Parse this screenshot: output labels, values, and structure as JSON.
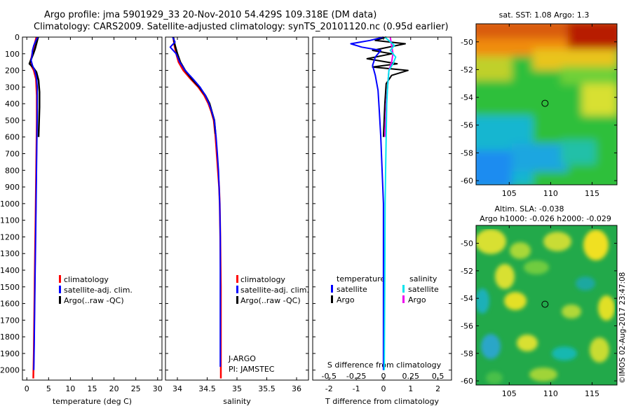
{
  "title": {
    "line1": "Argo profile: jma 5901929_33 20-Nov-2010 54.429S 109.318E (DM data)",
    "line2": "Climatology: CARS2009. Satellite-adjusted climatology: synTS_20101120.nc (0.95d earlier)"
  },
  "watermark": "©IMOS 02-Aug-2017 23:47:08",
  "colors": {
    "climatology": "#ff0000",
    "satellite": "#0000ff",
    "argo": "#000000",
    "sat_salinity": "#00e5ee",
    "argo_salinity": "#ee00ee"
  },
  "chart_data": [
    {
      "id": "temperature",
      "type": "line",
      "xlabel": "temperature (deg C)",
      "ylabel": "",
      "xlim": [
        -1,
        31
      ],
      "ylim": [
        2060,
        0
      ],
      "xticks": [
        0,
        5,
        10,
        15,
        20,
        25,
        30
      ],
      "xtick_labels": [
        "0",
        "5",
        "10",
        "15",
        "20",
        "25",
        "30"
      ],
      "yticks": [
        0,
        100,
        200,
        300,
        400,
        500,
        600,
        700,
        800,
        900,
        1000,
        1100,
        1200,
        1300,
        1400,
        1500,
        1600,
        1700,
        1800,
        1900,
        2000
      ],
      "ytick_labels": [
        "0",
        "100",
        "200",
        "300",
        "400",
        "500",
        "600",
        "700",
        "800",
        "900",
        "1000",
        "1100",
        "1200",
        "1300",
        "1400",
        "1500",
        "1600",
        "1700",
        "1800",
        "1900",
        "2000"
      ],
      "legend": [
        "climatology",
        "satellite-adj. clim.",
        "Argo(..raw -QC)"
      ],
      "series": [
        {
          "name": "climatology",
          "color": "#ff0000",
          "width": 2.5,
          "points": [
            [
              2.2,
              0
            ],
            [
              2.0,
              20
            ],
            [
              1.7,
              50
            ],
            [
              1.4,
              80
            ],
            [
              1.1,
              120
            ],
            [
              0.8,
              150
            ],
            [
              0.9,
              165
            ],
            [
              1.6,
              200
            ],
            [
              2.1,
              250
            ],
            [
              2.3,
              350
            ],
            [
              2.3,
              500
            ],
            [
              2.2,
              700
            ],
            [
              2.1,
              900
            ],
            [
              2.0,
              1100
            ],
            [
              1.9,
              1300
            ],
            [
              1.8,
              1500
            ],
            [
              1.7,
              1700
            ],
            [
              1.6,
              1900
            ],
            [
              1.5,
              2050
            ]
          ]
        },
        {
          "name": "Argo(..raw -QC)",
          "color": "#000000",
          "width": 2.5,
          "points": [
            [
              2.6,
              0
            ],
            [
              2.2,
              40
            ],
            [
              1.9,
              70
            ],
            [
              1.5,
              100
            ],
            [
              0.9,
              140
            ],
            [
              0.6,
              160
            ],
            [
              1.4,
              180
            ],
            [
              2.2,
              210
            ],
            [
              2.7,
              260
            ],
            [
              2.9,
              330
            ],
            [
              2.9,
              420
            ],
            [
              2.8,
              520
            ],
            [
              2.7,
              600
            ]
          ]
        },
        {
          "name": "satellite-adj. clim.",
          "color": "#0000ff",
          "width": 2,
          "points": [
            [
              2.5,
              0
            ],
            [
              2.1,
              20
            ],
            [
              1.6,
              50
            ],
            [
              1.3,
              80
            ],
            [
              1.2,
              110
            ],
            [
              1.0,
              140
            ],
            [
              1.3,
              170
            ],
            [
              1.8,
              200
            ],
            [
              2.2,
              240
            ],
            [
              2.4,
              300
            ],
            [
              2.4,
              450
            ],
            [
              2.3,
              650
            ],
            [
              2.2,
              850
            ],
            [
              2.1,
              1050
            ],
            [
              2.0,
              1250
            ],
            [
              1.9,
              1450
            ],
            [
              1.8,
              1650
            ],
            [
              1.7,
              1850
            ],
            [
              1.6,
              2000
            ]
          ]
        }
      ]
    },
    {
      "id": "salinity",
      "type": "line",
      "xlabel": "salinity",
      "ylabel": "",
      "xlim": [
        33.8,
        36.2
      ],
      "ylim": [
        2060,
        0
      ],
      "xticks": [
        34,
        34.5,
        35,
        35.5,
        36
      ],
      "xtick_labels": [
        "34",
        "34.5",
        "35",
        "35.5",
        "36"
      ],
      "legend": [
        "climatology",
        "satellite-adj. clim.",
        "Argo(..raw -QC)"
      ],
      "annotation": [
        "J-ARGO",
        "PI: JAMSTEC"
      ],
      "series": [
        {
          "name": "climatology",
          "color": "#ff0000",
          "width": 2.5,
          "points": [
            [
              33.93,
              0
            ],
            [
              33.95,
              50
            ],
            [
              33.98,
              100
            ],
            [
              34.02,
              150
            ],
            [
              34.1,
              200
            ],
            [
              34.22,
              250
            ],
            [
              34.35,
              300
            ],
            [
              34.45,
              350
            ],
            [
              34.52,
              400
            ],
            [
              34.57,
              450
            ],
            [
              34.61,
              500
            ],
            [
              34.64,
              600
            ],
            [
              34.66,
              700
            ],
            [
              34.68,
              800
            ],
            [
              34.7,
              900
            ],
            [
              34.71,
              1000
            ],
            [
              34.72,
              1200
            ],
            [
              34.73,
              1500
            ],
            [
              34.73,
              2050
            ]
          ]
        },
        {
          "name": "Argo(..raw -QC)",
          "color": "#000000",
          "width": 2.5,
          "points": [
            [
              33.93,
              0
            ],
            [
              33.96,
              50
            ],
            [
              34.0,
              100
            ],
            [
              34.05,
              150
            ],
            [
              34.13,
              200
            ],
            [
              34.24,
              250
            ],
            [
              34.37,
              300
            ],
            [
              34.47,
              350
            ],
            [
              34.54,
              400
            ],
            [
              34.58,
              450
            ],
            [
              34.62,
              500
            ],
            [
              34.64,
              580
            ]
          ]
        },
        {
          "name": "satellite-adj. clim.",
          "color": "#0000ff",
          "width": 2,
          "points": [
            [
              33.92,
              0
            ],
            [
              33.96,
              30
            ],
            [
              33.88,
              60
            ],
            [
              33.98,
              100
            ],
            [
              34.04,
              150
            ],
            [
              34.13,
              200
            ],
            [
              34.26,
              250
            ],
            [
              34.38,
              300
            ],
            [
              34.47,
              350
            ],
            [
              34.53,
              400
            ],
            [
              34.58,
              450
            ],
            [
              34.62,
              500
            ],
            [
              34.65,
              600
            ],
            [
              34.67,
              700
            ],
            [
              34.69,
              800
            ],
            [
              34.7,
              900
            ],
            [
              34.71,
              1000
            ],
            [
              34.72,
              1200
            ],
            [
              34.72,
              1500
            ],
            [
              34.72,
              1800
            ],
            [
              34.72,
              1980
            ]
          ]
        }
      ]
    },
    {
      "id": "difference",
      "type": "line",
      "xlabel": "T difference from climatology",
      "xlabel_top": "S difference from climatology",
      "ylabel": "",
      "xlim": [
        -2.6,
        2.5
      ],
      "ylim": [
        2060,
        0
      ],
      "xticks": [
        -2,
        -1,
        0,
        1,
        2
      ],
      "xtick_labels": [
        "-2",
        "-1",
        "0",
        "1",
        "2"
      ],
      "xticks_s": [
        -0.5,
        -0.25,
        0,
        0.25,
        0.5
      ],
      "xtick_labels_s": [
        "-0.5",
        "-0.25",
        "0",
        "0.25",
        "0.5"
      ],
      "legend_t_title": "temperature",
      "legend_s_title": "salinity",
      "legend": [
        "satellite",
        "Argo",
        "satellite",
        "Argo"
      ],
      "series": [
        {
          "name": "Argo T",
          "color": "#000000",
          "width": 2,
          "points": [
            [
              0.1,
              0
            ],
            [
              -0.3,
              20
            ],
            [
              0.8,
              40
            ],
            [
              -0.4,
              80
            ],
            [
              0.3,
              100
            ],
            [
              -0.6,
              130
            ],
            [
              0.5,
              160
            ],
            [
              -0.4,
              180
            ],
            [
              0.9,
              200
            ],
            [
              0.3,
              230
            ],
            [
              0.1,
              280
            ],
            [
              0.05,
              400
            ],
            [
              0.0,
              600
            ]
          ]
        },
        {
          "name": "satellite T",
          "color": "#0000ff",
          "width": 2,
          "points": [
            [
              0.0,
              0
            ],
            [
              -0.5,
              20
            ],
            [
              -1.2,
              40
            ],
            [
              -0.8,
              60
            ],
            [
              -0.1,
              80
            ],
            [
              -0.3,
              120
            ],
            [
              -0.4,
              170
            ],
            [
              -0.3,
              230
            ],
            [
              -0.2,
              320
            ],
            [
              -0.15,
              450
            ],
            [
              -0.1,
              600
            ],
            [
              -0.05,
              800
            ],
            [
              0.0,
              1000
            ],
            [
              0.0,
              1400
            ],
            [
              0.0,
              2000
            ]
          ]
        },
        {
          "name": "Argo S",
          "color": "#ee00ee",
          "width": 2,
          "points": [
            [
              0.25,
              0
            ],
            [
              0.3,
              50
            ],
            [
              0.35,
              100
            ],
            [
              0.3,
              150
            ],
            [
              0.2,
              200
            ],
            [
              0.15,
              300
            ],
            [
              0.1,
              400
            ],
            [
              0.05,
              600
            ]
          ]
        },
        {
          "name": "satellite S",
          "color": "#00e5ee",
          "width": 2,
          "points": [
            [
              0.05,
              0
            ],
            [
              0.4,
              50
            ],
            [
              0.25,
              80
            ],
            [
              0.45,
              120
            ],
            [
              0.35,
              160
            ],
            [
              0.2,
              200
            ],
            [
              0.15,
              300
            ],
            [
              0.12,
              400
            ],
            [
              0.1,
              600
            ],
            [
              0.08,
              800
            ],
            [
              0.06,
              1000
            ],
            [
              0.05,
              1400
            ],
            [
              0.04,
              1700
            ],
            [
              0.03,
              2000
            ]
          ]
        }
      ]
    },
    {
      "id": "sst-map",
      "type": "heatmap",
      "title": "sat. SST: 1.08 Argo: 1.3",
      "xlim": [
        101,
        118
      ],
      "ylim": [
        -60.3,
        -48.7
      ],
      "xticks": [
        105,
        110,
        115
      ],
      "xtick_labels": [
        "105",
        "110",
        "115"
      ],
      "yticks": [
        -50,
        -52,
        -54,
        -56,
        -58,
        -60
      ],
      "ytick_labels": [
        "-50",
        "-52",
        "-54",
        "-56",
        "-58",
        "-60"
      ],
      "marker": [
        109.318,
        -54.429
      ]
    },
    {
      "id": "sla-map",
      "type": "heatmap",
      "title": "Altim. SLA: -0.038",
      "subtitle": "Argo h1000: -0.026 h2000: -0.029",
      "xlim": [
        101,
        118
      ],
      "ylim": [
        -60.3,
        -48.7
      ],
      "xticks": [
        105,
        110,
        115
      ],
      "xtick_labels": [
        "105",
        "110",
        "115"
      ],
      "yticks": [
        -50,
        -52,
        -54,
        -56,
        -58,
        -60
      ],
      "ytick_labels": [
        "-50",
        "-52",
        "-54",
        "-56",
        "-58",
        "-60"
      ],
      "marker": [
        109.318,
        -54.429
      ]
    }
  ]
}
